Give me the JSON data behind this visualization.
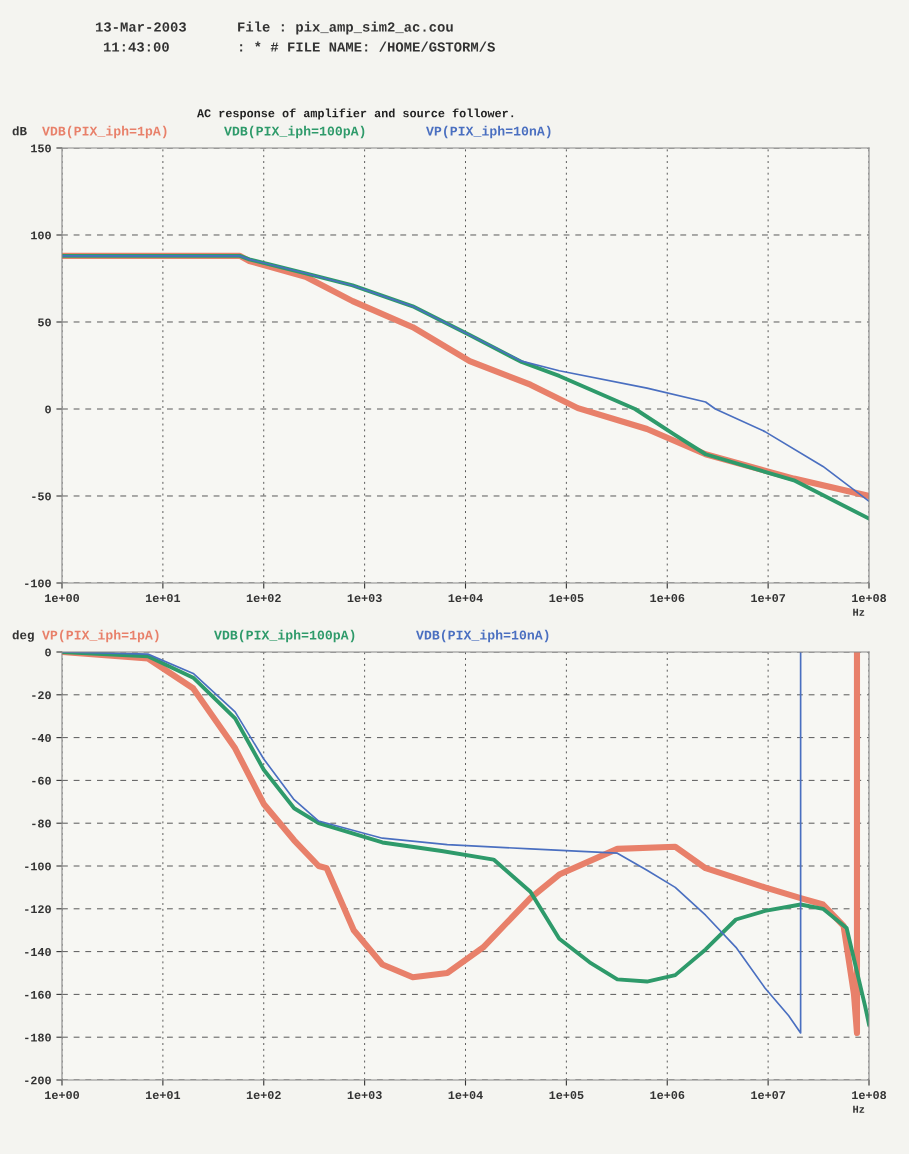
{
  "chart_data": [
    {
      "type": "line",
      "title": "AC response of amplifier and source follower.",
      "ylabel": "dB",
      "xlabel": "Hz",
      "log": "x",
      "grid": true,
      "legend": "top",
      "annotations": [
        "13-Mar-2003",
        "File : pix_amp_sim2_ac.cou",
        "11:43:00",
        ": * # FILE NAME: /HOME/GSTORM/S"
      ],
      "xlim": [
        1,
        100000000
      ],
      "ylim": [
        -100,
        150
      ],
      "xticks": [
        {
          "value": 1,
          "label": "1e+00"
        },
        {
          "value": 10,
          "label": "1e+01"
        },
        {
          "value": 100,
          "label": "1e+02"
        },
        {
          "value": 1000,
          "label": "1e+03"
        },
        {
          "value": 10000,
          "label": "1e+04"
        },
        {
          "value": 100000,
          "label": "1e+05"
        },
        {
          "value": 1000000,
          "label": "1e+06"
        },
        {
          "value": 10000000,
          "label": "1e+07"
        },
        {
          "value": 100000000,
          "label": "1e+08"
        }
      ],
      "yticks": [
        -100,
        -50,
        0,
        50,
        100,
        150
      ],
      "series": [
        {
          "name": "VDB(PIX_iph=1pA)",
          "color": "#e8806a",
          "x": [
            1,
            58,
            72,
            260,
            760,
            3000,
            11000,
            44000,
            130000,
            630000,
            2400000,
            18000000,
            100000000
          ],
          "values": [
            88,
            88,
            85,
            76,
            62,
            47,
            27.5,
            14,
            0.5,
            -11.5,
            -26,
            -40,
            -50
          ]
        },
        {
          "name": "VDB(PIX_iph=100pA)",
          "color": "#2e9a6a",
          "x": [
            1,
            58,
            72,
            260,
            760,
            3000,
            11000,
            36000,
            85000,
            480000,
            1200000,
            2400000,
            18000000,
            100000000
          ],
          "values": [
            88,
            88,
            86,
            78,
            71,
            59,
            42.5,
            27,
            19,
            0,
            -15,
            -26,
            -41,
            -63
          ]
        },
        {
          "name": "VP(PIX_iph=10nA)",
          "color": "#4a6fc0",
          "x": [
            1,
            58,
            72,
            260,
            760,
            3000,
            11000,
            36000,
            85000,
            630000,
            2400000,
            3000000,
            9300000,
            35000000,
            100000000
          ],
          "values": [
            88,
            88,
            86,
            78,
            71,
            59,
            42.5,
            27.5,
            22,
            12,
            4,
            0,
            -13,
            -33,
            -53
          ]
        }
      ]
    },
    {
      "type": "line",
      "ylabel": "deg",
      "xlabel": "Hz",
      "log": "x",
      "grid": true,
      "legend": "top",
      "xlim": [
        1,
        100000000
      ],
      "ylim": [
        -200,
        0
      ],
      "xticks": [
        {
          "value": 1,
          "label": "1e+00"
        },
        {
          "value": 10,
          "label": "1e+01"
        },
        {
          "value": 100,
          "label": "1e+02"
        },
        {
          "value": 1000,
          "label": "1e+03"
        },
        {
          "value": 10000,
          "label": "1e+04"
        },
        {
          "value": 100000,
          "label": "1e+05"
        },
        {
          "value": 1000000,
          "label": "1e+06"
        },
        {
          "value": 10000000,
          "label": "1e+07"
        },
        {
          "value": 100000000,
          "label": "1e+08"
        }
      ],
      "yticks": [
        -200,
        -180,
        -160,
        -140,
        -120,
        -100,
        -80,
        -60,
        -40,
        -20,
        0
      ],
      "series": [
        {
          "name": "VP(PIX_iph=1pA)",
          "color": "#e8806a",
          "x": [
            1,
            7.1,
            20,
            52,
            100,
            200,
            350,
            420,
            780,
            1500,
            3000,
            6600,
            15000,
            44000,
            85000,
            320000,
            1200000,
            2400000,
            9300000,
            21000000,
            35000000,
            56000000,
            71000000,
            76000000,
            76000000
          ],
          "values": [
            0,
            -3,
            -17,
            -45,
            -71,
            -88,
            -100,
            -101,
            -130,
            -146,
            -152,
            -150,
            -138,
            -115,
            -104,
            -92,
            -91,
            -101,
            -110,
            -115,
            -118,
            -128,
            -160,
            -178,
            0
          ]
        },
        {
          "name": "VDB(PIX_iph=100pA)",
          "color": "#2e9a6a",
          "x": [
            1,
            7.1,
            20,
            52,
            100,
            200,
            350,
            1500,
            5800,
            19000,
            44000,
            85000,
            170000,
            320000,
            630000,
            1200000,
            2400000,
            4800000,
            9300000,
            21000000,
            35000000,
            60000000,
            91000000,
            100000000
          ],
          "values": [
            0,
            -2,
            -12,
            -31,
            -55,
            -73,
            -80,
            -89,
            -93,
            -97,
            -112,
            -134,
            -145,
            -153,
            -154,
            -151,
            -139,
            -125,
            -121,
            -118,
            -120,
            -129,
            -165,
            -174
          ]
        },
        {
          "name": "VDB(PIX_iph=10nA)",
          "color": "#4a6fc0",
          "x": [
            1,
            7.1,
            20,
            52,
            100,
            200,
            350,
            1500,
            6600,
            44000,
            320000,
            630000,
            1200000,
            2400000,
            4800000,
            9300000,
            16000000,
            21000000,
            21000000
          ],
          "values": [
            0,
            -1,
            -10,
            -28,
            -50,
            -69,
            -79,
            -87,
            -90,
            -92,
            -94,
            -102,
            -110,
            -123,
            -138,
            -157,
            -170,
            -178,
            0
          ]
        }
      ]
    }
  ]
}
